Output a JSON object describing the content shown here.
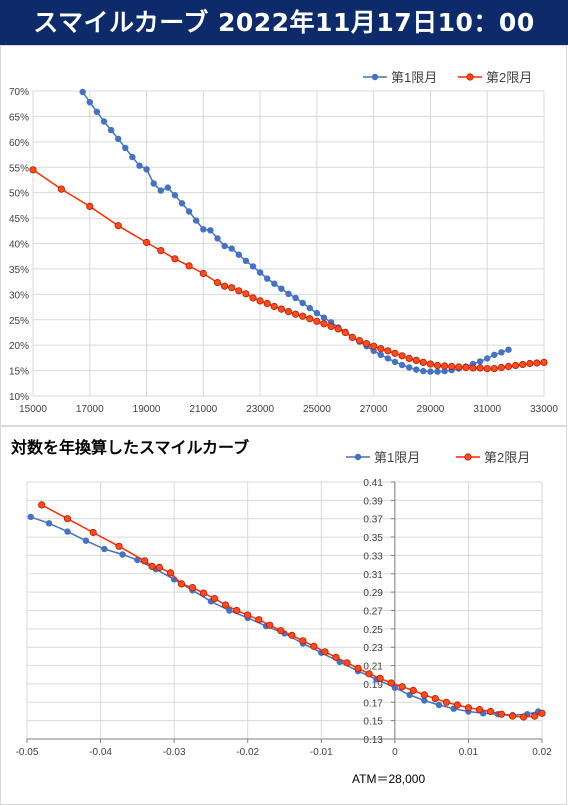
{
  "header": {
    "title": "スマイルカーブ 2022年11月17日10：00"
  },
  "colors": {
    "series1": "#4472c4",
    "series2": "#ff2a00",
    "series2_marker_fill": "#ff4a1a",
    "grid": "#d9d9d9",
    "header_bg": "#0d2a6b"
  },
  "chart_data": [
    {
      "type": "line",
      "title": "",
      "xlabel": "",
      "ylabel": "",
      "xlim": [
        15000,
        33000
      ],
      "ylim": [
        10,
        70
      ],
      "xticks": [
        "15000",
        "17000",
        "19000",
        "21000",
        "23000",
        "25000",
        "27000",
        "29000",
        "31000",
        "33000"
      ],
      "yticks": [
        "10%",
        "15%",
        "20%",
        "25%",
        "30%",
        "35%",
        "40%",
        "45%",
        "50%",
        "55%",
        "60%",
        "65%",
        "70%"
      ],
      "grid": true,
      "legend": "top-right",
      "series": [
        {
          "name": "第1限月",
          "points": [
            [
              16750,
              69.8
            ],
            [
              17000,
              67.8
            ],
            [
              17250,
              65.9
            ],
            [
              17500,
              64.0
            ],
            [
              17750,
              62.3
            ],
            [
              18000,
              60.6
            ],
            [
              18250,
              58.8
            ],
            [
              18500,
              57.0
            ],
            [
              18750,
              55.3
            ],
            [
              19000,
              54.6
            ],
            [
              19250,
              51.8
            ],
            [
              19500,
              50.4
            ],
            [
              19750,
              51.0
            ],
            [
              20000,
              49.5
            ],
            [
              20250,
              47.9
            ],
            [
              20500,
              46.3
            ],
            [
              20750,
              44.5
            ],
            [
              21000,
              42.8
            ],
            [
              21250,
              42.6
            ],
            [
              21500,
              41.0
            ],
            [
              21750,
              39.5
            ],
            [
              22000,
              39.0
            ],
            [
              22250,
              37.8
            ],
            [
              22500,
              36.6
            ],
            [
              22750,
              35.5
            ],
            [
              23000,
              34.3
            ],
            [
              23250,
              33.1
            ],
            [
              23500,
              32.1
            ],
            [
              23750,
              31.1
            ],
            [
              24000,
              30.1
            ],
            [
              24250,
              29.3
            ],
            [
              24500,
              28.3
            ],
            [
              24750,
              27.3
            ],
            [
              25000,
              26.3
            ],
            [
              25250,
              25.4
            ],
            [
              25500,
              24.5
            ],
            [
              25750,
              23.5
            ],
            [
              26000,
              22.6
            ],
            [
              26250,
              21.6
            ],
            [
              26500,
              20.7
            ],
            [
              26750,
              19.8
            ],
            [
              27000,
              18.9
            ],
            [
              27250,
              18.1
            ],
            [
              27500,
              17.4
            ],
            [
              27750,
              16.7
            ],
            [
              28000,
              16.1
            ],
            [
              28250,
              15.6
            ],
            [
              28500,
              15.2
            ],
            [
              28750,
              14.9
            ],
            [
              29000,
              14.8
            ],
            [
              29250,
              14.8
            ],
            [
              29500,
              14.9
            ],
            [
              29750,
              15.1
            ],
            [
              30000,
              15.4
            ],
            [
              30250,
              15.8
            ],
            [
              30500,
              16.3
            ],
            [
              30750,
              16.8
            ],
            [
              31000,
              17.4
            ],
            [
              31250,
              18.1
            ],
            [
              31500,
              18.6
            ],
            [
              31750,
              19.1
            ]
          ]
        },
        {
          "name": "第2限月",
          "points": [
            [
              15000,
              54.5
            ],
            [
              16000,
              50.7
            ],
            [
              17000,
              47.3
            ],
            [
              18000,
              43.5
            ],
            [
              19000,
              40.2
            ],
            [
              19500,
              38.6
            ],
            [
              20000,
              37.0
            ],
            [
              20500,
              35.6
            ],
            [
              21000,
              34.1
            ],
            [
              21500,
              32.3
            ],
            [
              21750,
              31.6
            ],
            [
              22000,
              31.3
            ],
            [
              22250,
              30.7
            ],
            [
              22500,
              30.1
            ],
            [
              22750,
              29.3
            ],
            [
              23000,
              28.7
            ],
            [
              23250,
              28.2
            ],
            [
              23500,
              27.6
            ],
            [
              23750,
              27.1
            ],
            [
              24000,
              26.6
            ],
            [
              24250,
              26.1
            ],
            [
              24500,
              25.7
            ],
            [
              24750,
              25.2
            ],
            [
              25000,
              24.7
            ],
            [
              25250,
              24.2
            ],
            [
              25500,
              23.7
            ],
            [
              25750,
              23.2
            ],
            [
              26000,
              22.5
            ],
            [
              26250,
              21.5
            ],
            [
              26500,
              20.9
            ],
            [
              26750,
              20.3
            ],
            [
              27000,
              19.8
            ],
            [
              27250,
              19.3
            ],
            [
              27500,
              18.9
            ],
            [
              27750,
              18.4
            ],
            [
              28000,
              17.9
            ],
            [
              28250,
              17.4
            ],
            [
              28500,
              17.0
            ],
            [
              28750,
              16.6
            ],
            [
              29000,
              16.3
            ],
            [
              29250,
              16.0
            ],
            [
              29500,
              15.9
            ],
            [
              29750,
              15.8
            ],
            [
              30000,
              15.7
            ],
            [
              30250,
              15.6
            ],
            [
              30500,
              15.5
            ],
            [
              30750,
              15.5
            ],
            [
              31000,
              15.4
            ],
            [
              31250,
              15.4
            ],
            [
              31500,
              15.6
            ],
            [
              31750,
              15.8
            ],
            [
              32000,
              16.0
            ],
            [
              32250,
              16.2
            ],
            [
              32500,
              16.4
            ],
            [
              32750,
              16.5
            ],
            [
              33000,
              16.6
            ]
          ]
        }
      ]
    },
    {
      "type": "line",
      "title": "対数を年換算したスマイルカーブ",
      "xlabel": "",
      "ylabel": "",
      "xlim": [
        -0.05,
        0.02
      ],
      "ylim": [
        0.13,
        0.41
      ],
      "xticks": [
        "-0.05",
        "-0.04",
        "-0.03",
        "-0.02",
        "-0.01",
        "0",
        "0.01",
        "0.02"
      ],
      "yticks": [
        "0.13",
        "0.15",
        "0.17",
        "0.19",
        "0.21",
        "0.23",
        "0.25",
        "0.27",
        "0.29",
        "0.31",
        "0.33",
        "0.35",
        "0.37",
        "0.39",
        "0.41"
      ],
      "grid": true,
      "legend": "top-right",
      "annotation": "ATM＝28,000",
      "series": [
        {
          "name": "第1限月",
          "points": [
            [
              -0.0495,
              0.372
            ],
            [
              -0.047,
              0.365
            ],
            [
              -0.0445,
              0.356
            ],
            [
              -0.042,
              0.346
            ],
            [
              -0.0395,
              0.337
            ],
            [
              -0.037,
              0.331
            ],
            [
              -0.035,
              0.325
            ],
            [
              -0.0325,
              0.315
            ],
            [
              -0.03,
              0.304
            ],
            [
              -0.0275,
              0.292
            ],
            [
              -0.025,
              0.28
            ],
            [
              -0.0225,
              0.27
            ],
            [
              -0.02,
              0.262
            ],
            [
              -0.0175,
              0.253
            ],
            [
              -0.015,
              0.245
            ],
            [
              -0.0125,
              0.234
            ],
            [
              -0.01,
              0.224
            ],
            [
              -0.0075,
              0.214
            ],
            [
              -0.005,
              0.204
            ],
            [
              -0.0025,
              0.195
            ],
            [
              0.0,
              0.186
            ],
            [
              0.002,
              0.178
            ],
            [
              0.004,
              0.172
            ],
            [
              0.006,
              0.167
            ],
            [
              0.008,
              0.163
            ],
            [
              0.01,
              0.16
            ],
            [
              0.012,
              0.158
            ],
            [
              0.014,
              0.157
            ],
            [
              0.016,
              0.156
            ],
            [
              0.018,
              0.157
            ],
            [
              0.0195,
              0.16
            ]
          ]
        },
        {
          "name": "第2限月",
          "points": [
            [
              -0.048,
              0.385
            ],
            [
              -0.0445,
              0.37
            ],
            [
              -0.041,
              0.355
            ],
            [
              -0.0375,
              0.34
            ],
            [
              -0.034,
              0.324
            ],
            [
              -0.033,
              0.318
            ],
            [
              -0.032,
              0.317
            ],
            [
              -0.0305,
              0.311
            ],
            [
              -0.029,
              0.299
            ],
            [
              -0.0275,
              0.295
            ],
            [
              -0.026,
              0.289
            ],
            [
              -0.0245,
              0.283
            ],
            [
              -0.023,
              0.276
            ],
            [
              -0.0215,
              0.27
            ],
            [
              -0.02,
              0.265
            ],
            [
              -0.0185,
              0.26
            ],
            [
              -0.017,
              0.254
            ],
            [
              -0.0155,
              0.248
            ],
            [
              -0.014,
              0.243
            ],
            [
              -0.0125,
              0.237
            ],
            [
              -0.011,
              0.231
            ],
            [
              -0.0095,
              0.225
            ],
            [
              -0.008,
              0.219
            ],
            [
              -0.0065,
              0.213
            ],
            [
              -0.005,
              0.207
            ],
            [
              -0.0035,
              0.201
            ],
            [
              -0.002,
              0.196
            ],
            [
              -0.0005,
              0.191
            ],
            [
              0.001,
              0.187
            ],
            [
              0.0025,
              0.183
            ],
            [
              0.004,
              0.178
            ],
            [
              0.0055,
              0.174
            ],
            [
              0.007,
              0.17
            ],
            [
              0.0085,
              0.167
            ],
            [
              0.01,
              0.164
            ],
            [
              0.0115,
              0.162
            ],
            [
              0.013,
              0.16
            ],
            [
              0.0145,
              0.157
            ],
            [
              0.016,
              0.155
            ],
            [
              0.0175,
              0.154
            ],
            [
              0.019,
              0.155
            ],
            [
              0.02,
              0.158
            ]
          ]
        }
      ]
    }
  ]
}
